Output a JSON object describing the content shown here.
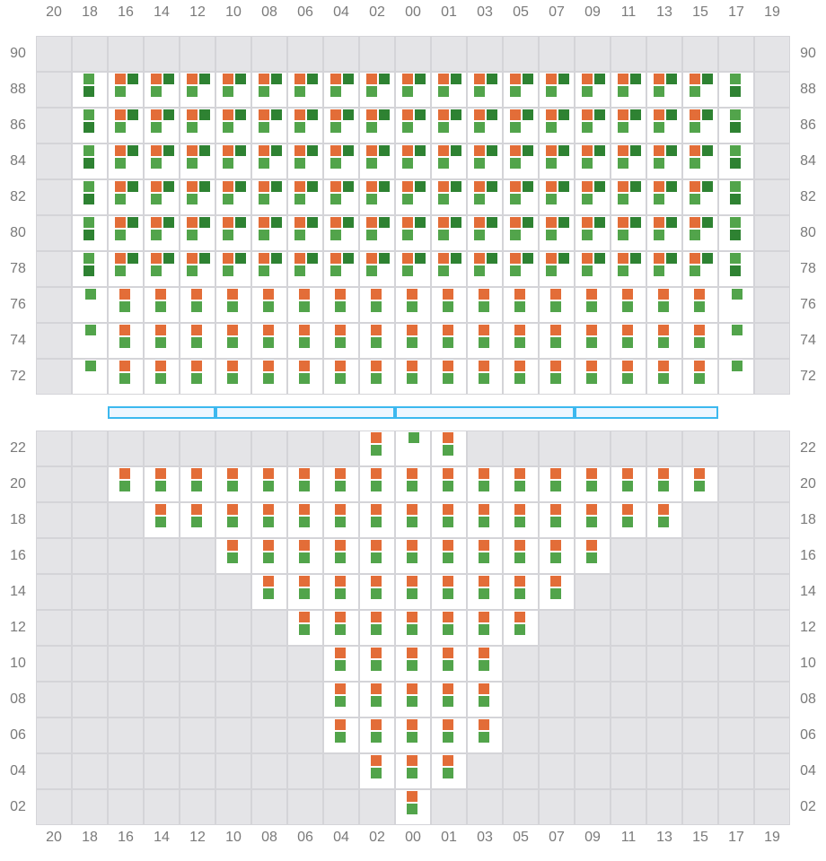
{
  "columns": [
    "20",
    "18",
    "16",
    "14",
    "12",
    "10",
    "08",
    "06",
    "04",
    "02",
    "00",
    "01",
    "03",
    "05",
    "07",
    "09",
    "11",
    "13",
    "15",
    "17",
    "19"
  ],
  "colors": {
    "orange": "#e36d38",
    "dark_green": "#2e8232",
    "light_green": "#52a44b",
    "unavailable": "#e4e4e7",
    "divider": "#3cb8ef"
  },
  "cell_types": {
    "-": "unavailable",
    "A": [
      "orange",
      "dark_green",
      "light_green"
    ],
    "B": [
      "light_green",
      "dark_green"
    ],
    "C": [
      "orange",
      "light_green"
    ],
    "D": [
      "light_green"
    ]
  },
  "top_section": {
    "rows": [
      {
        "label": "90",
        "cells": "---------------------"
      },
      {
        "label": "88",
        "cells": "-BAAAAAAAAAAAAAAAAAB-"
      },
      {
        "label": "86",
        "cells": "-BAAAAAAAAAAAAAAAAAB-"
      },
      {
        "label": "84",
        "cells": "-BAAAAAAAAAAAAAAAAAB-"
      },
      {
        "label": "82",
        "cells": "-BAAAAAAAAAAAAAAAAAB-"
      },
      {
        "label": "80",
        "cells": "-BAAAAAAAAAAAAAAAAAB-"
      },
      {
        "label": "78",
        "cells": "-BAAAAAAAAAAAAAAAAAB-"
      },
      {
        "label": "76",
        "cells": "-DCCCCCCCCCCCCCCCCCD-"
      },
      {
        "label": "74",
        "cells": "-DCCCCCCCCCCCCCCCCCD-"
      },
      {
        "label": "72",
        "cells": "-DCCCCCCCCCCCCCCCCCD-"
      }
    ]
  },
  "divider_segments": [
    [
      "16",
      "12"
    ],
    [
      "10",
      "02"
    ],
    [
      "00",
      "07"
    ],
    [
      "09",
      "15"
    ]
  ],
  "bottom_section": {
    "rows": [
      {
        "label": "22",
        "cells": "---------CDC---------"
      },
      {
        "label": "20",
        "cells": "--CCCCCCCCCCCCCCCCC--"
      },
      {
        "label": "18",
        "cells": "---CCCCCCCCCCCCCCC---"
      },
      {
        "label": "16",
        "cells": "-----CCCCCCCCCCC-----"
      },
      {
        "label": "14",
        "cells": "------CCCCCCCCC------"
      },
      {
        "label": "12",
        "cells": "-------CCCCCCC-------"
      },
      {
        "label": "10",
        "cells": "--------CCCCC--------"
      },
      {
        "label": "08",
        "cells": "--------CCCCC--------"
      },
      {
        "label": "06",
        "cells": "--------CCCCC--------"
      },
      {
        "label": "04",
        "cells": "---------CCC---------"
      },
      {
        "label": "02",
        "cells": "----------C----------"
      }
    ]
  }
}
